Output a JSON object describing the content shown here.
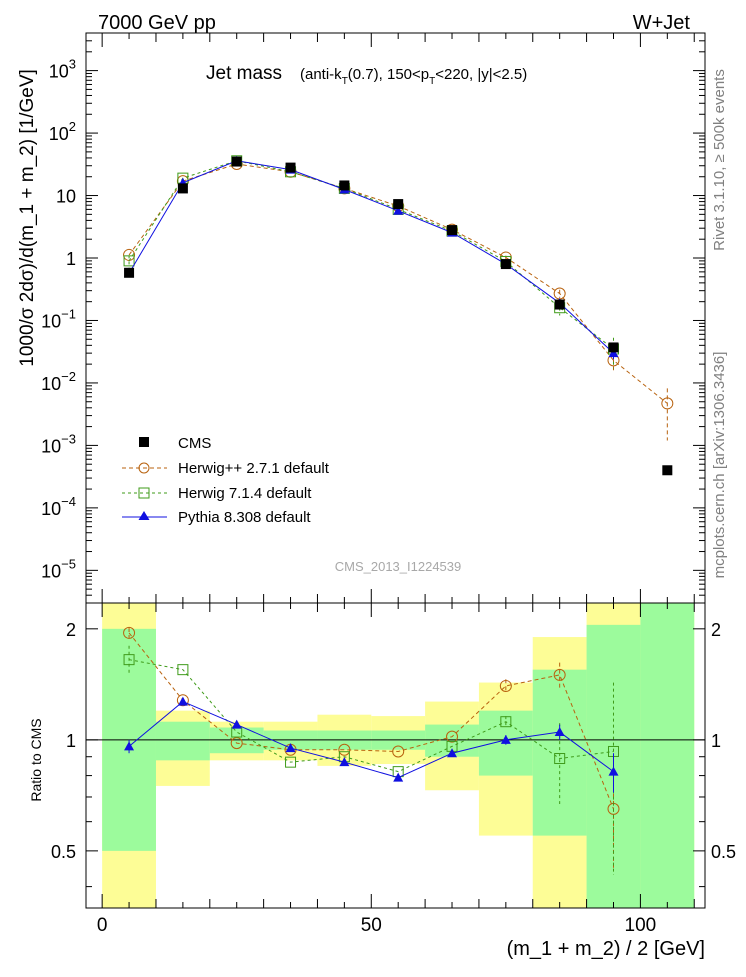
{
  "header": {
    "left": "7000 GeV pp",
    "right": "W+Jet"
  },
  "side_labels": {
    "rivet": "Rivet 3.1.10, ≥ 500k events",
    "arxiv": "mcplots.cern.ch [arXiv:1306.3436]"
  },
  "watermark": "CMS_2013_I1224539",
  "chart_data": {
    "type": "scatter",
    "title_main": "Jet mass",
    "title_detail": "(anti-k_T(0.7), 150<p_T<220, |y|<2.5)",
    "xlabel": "(m_1 + m_2) / 2 [GeV]",
    "ylabel": "1000/σ 2dσ)/d(m_1 + m_2) [1/GeV]",
    "ratio_ylabel": "Ratio to CMS",
    "xlim": [
      -3,
      112
    ],
    "ylim": [
      3e-06,
      4000
    ],
    "yscale": "log",
    "ratio_ylim": [
      0.35,
      2.35
    ],
    "ratio_yscale": "log",
    "x_ticks": [
      0,
      50,
      100
    ],
    "x_tick_labels": [
      "0",
      "50",
      "100"
    ],
    "y_ticks": [
      1e-05,
      0.0001,
      0.001,
      0.01,
      0.1,
      1,
      10,
      100,
      1000
    ],
    "y_tick_labels": [
      {
        "base": "10",
        "exp": "−5"
      },
      {
        "base": "10",
        "exp": "−4"
      },
      {
        "base": "10",
        "exp": "−3"
      },
      {
        "base": "10",
        "exp": "−2"
      },
      {
        "base": "10",
        "exp": "−1"
      },
      {
        "base": "1",
        "exp": ""
      },
      {
        "base": "10",
        "exp": ""
      },
      {
        "base": "10",
        "exp": "2"
      },
      {
        "base": "10",
        "exp": "3"
      }
    ],
    "ratio_ticks": [
      0.5,
      1,
      2
    ],
    "ratio_tick_labels": [
      "0.5",
      "1",
      "2"
    ],
    "bins": [
      0,
      10,
      20,
      30,
      40,
      50,
      60,
      70,
      80,
      90,
      100,
      110
    ],
    "data": {
      "name": "CMS",
      "x": [
        5,
        15,
        25,
        35,
        45,
        55,
        65,
        75,
        85,
        95,
        105
      ],
      "y": [
        0.58,
        13,
        35,
        28,
        14.5,
        7.3,
        2.8,
        0.8,
        0.18,
        0.037,
        0.0004
      ]
    },
    "band_stat": [
      [
        0.5,
        2.0
      ],
      [
        0.88,
        1.12
      ],
      [
        0.92,
        1.08
      ],
      [
        0.94,
        1.06
      ],
      [
        0.94,
        1.06
      ],
      [
        0.94,
        1.06
      ],
      [
        0.9,
        1.1
      ],
      [
        0.8,
        1.2
      ],
      [
        0.55,
        1.55
      ],
      [
        0.3,
        2.05
      ],
      [
        0.3,
        2.5
      ]
    ],
    "band_total": [
      [
        0.3,
        2.5
      ],
      [
        0.75,
        1.2
      ],
      [
        0.88,
        1.12
      ],
      [
        0.88,
        1.12
      ],
      [
        0.85,
        1.17
      ],
      [
        0.86,
        1.16
      ],
      [
        0.73,
        1.27
      ],
      [
        0.55,
        1.43
      ],
      [
        0.3,
        1.9
      ],
      [
        0.3,
        2.5
      ],
      [
        0.3,
        2.5
      ]
    ],
    "series": [
      {
        "name": "Herwig++ 2.7.1 default",
        "color": "#b8620e",
        "marker": "circle",
        "dash": "4,3",
        "x": [
          5,
          15,
          25,
          35,
          45,
          55,
          65,
          75,
          85,
          95,
          105
        ],
        "y": [
          1.12,
          17,
          32,
          24,
          13,
          6.8,
          2.85,
          1.02,
          0.27,
          0.023,
          0.0047
        ],
        "yerr": [
          0,
          0,
          0,
          0,
          0,
          0,
          0,
          0.07,
          0.04,
          0.008,
          0.0035
        ],
        "ratio_x": [
          5,
          15,
          25,
          35,
          45,
          55,
          65,
          75,
          85,
          95
        ],
        "ratio": [
          1.95,
          1.28,
          0.98,
          0.94,
          0.94,
          0.93,
          1.02,
          1.4,
          1.5,
          0.65
        ],
        "ratio_err": [
          0.06,
          0,
          0,
          0,
          0,
          0,
          0,
          0.06,
          0.12,
          0.2
        ]
      },
      {
        "name": "Herwig 7.1.4 default",
        "color": "#3f9b1a",
        "marker": "square",
        "dash": "3,3",
        "x": [
          5,
          15,
          25,
          35,
          45,
          55,
          65,
          75,
          85,
          95
        ],
        "y": [
          0.9,
          19,
          36,
          24,
          13,
          6,
          2.7,
          0.88,
          0.16,
          0.035
        ],
        "yerr": [
          0.2,
          0,
          0,
          0,
          0,
          0,
          0,
          0,
          0.04,
          0.018
        ],
        "ratio_x": [
          5,
          15,
          25,
          35,
          45,
          55,
          65,
          75,
          85,
          95
        ],
        "ratio": [
          1.65,
          1.55,
          1.05,
          0.87,
          0.9,
          0.82,
          0.96,
          1.12,
          0.89,
          0.93
        ],
        "ratio_err": [
          0.15,
          0,
          0,
          0,
          0,
          0,
          0,
          0.04,
          0.22,
          0.5
        ]
      },
      {
        "name": "Pythia 8.308 default",
        "color": "#1010e0",
        "marker": "triangle",
        "dash": "",
        "x": [
          5,
          15,
          25,
          35,
          45,
          55,
          65,
          75,
          85,
          95
        ],
        "y": [
          0.57,
          16,
          36,
          26,
          12.5,
          5.7,
          2.55,
          0.8,
          0.19,
          0.03
        ],
        "yerr": [
          0,
          0,
          0,
          0,
          0,
          0,
          0,
          0,
          0.02,
          0.006
        ],
        "ratio_x": [
          5,
          15,
          25,
          35,
          45,
          55,
          65,
          75,
          85,
          95
        ],
        "ratio": [
          0.96,
          1.27,
          1.1,
          0.95,
          0.87,
          0.79,
          0.92,
          1.0,
          1.05,
          0.82
        ],
        "ratio_err": [
          0.04,
          0,
          0,
          0,
          0,
          0,
          0,
          0.03,
          0.05,
          0.1
        ]
      }
    ]
  }
}
